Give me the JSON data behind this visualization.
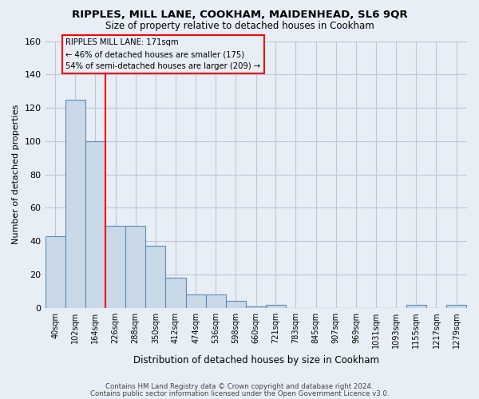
{
  "title": "RIPPLES, MILL LANE, COOKHAM, MAIDENHEAD, SL6 9QR",
  "subtitle": "Size of property relative to detached houses in Cookham",
  "xlabel": "Distribution of detached houses by size in Cookham",
  "ylabel": "Number of detached properties",
  "footer_line1": "Contains HM Land Registry data © Crown copyright and database right 2024.",
  "footer_line2": "Contains public sector information licensed under the Open Government Licence v3.0.",
  "bar_labels": [
    "40sqm",
    "102sqm",
    "164sqm",
    "226sqm",
    "288sqm",
    "350sqm",
    "412sqm",
    "474sqm",
    "536sqm",
    "598sqm",
    "660sqm",
    "721sqm",
    "783sqm",
    "845sqm",
    "907sqm",
    "969sqm",
    "1031sqm",
    "1093sqm",
    "1155sqm",
    "1217sqm",
    "1279sqm"
  ],
  "bar_values": [
    43,
    125,
    100,
    49,
    49,
    37,
    18,
    8,
    8,
    4,
    1,
    2,
    0,
    0,
    0,
    0,
    0,
    0,
    2,
    0,
    2
  ],
  "bar_color": "#c9d9e8",
  "bar_edge_color": "#5b8db8",
  "bar_linewidth": 0.8,
  "ylim": [
    0,
    160
  ],
  "yticks": [
    0,
    20,
    40,
    60,
    80,
    100,
    120,
    140,
    160
  ],
  "grid_color": "#c0c8d8",
  "bg_color": "#e8eef5",
  "annotation_box_text": "RIPPLES MILL LANE: 171sqm\n← 46% of detached houses are smaller (175)\n54% of semi-detached houses are larger (209) →",
  "annotation_box_color": "red",
  "bin_width": 62,
  "red_line_bin_index": 2
}
